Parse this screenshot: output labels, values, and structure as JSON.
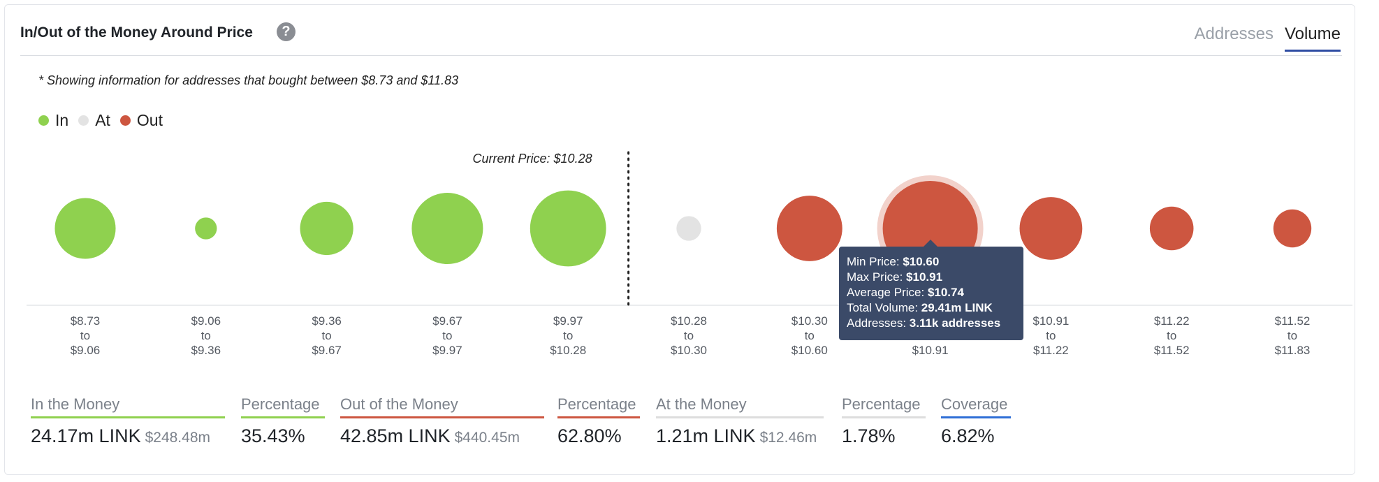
{
  "header": {
    "title": "In/Out of the Money Around Price",
    "help_icon": "question-icon",
    "help_glyph": "?",
    "tabs": [
      {
        "label": "Addresses",
        "active": false
      },
      {
        "label": "Volume",
        "active": true
      }
    ]
  },
  "note": "* Showing information for addresses that bought between $8.73 and $11.83",
  "legend": [
    {
      "label": "In",
      "color": "#8fd14f"
    },
    {
      "label": "At",
      "color": "#e3e3e3"
    },
    {
      "label": "Out",
      "color": "#cd5640"
    }
  ],
  "chart_data": {
    "type": "scatter",
    "current_price_label": "Current Price: $10.28",
    "current_price": 10.28,
    "bins": [
      {
        "from": "$8.73",
        "to": "$9.06",
        "status": "in",
        "size": 0.64
      },
      {
        "from": "$9.06",
        "to": "$9.36",
        "status": "in",
        "size": 0.23
      },
      {
        "from": "$9.36",
        "to": "$9.67",
        "status": "in",
        "size": 0.56
      },
      {
        "from": "$9.67",
        "to": "$9.97",
        "status": "in",
        "size": 0.75
      },
      {
        "from": "$9.97",
        "to": "$10.28",
        "status": "in",
        "size": 0.8
      },
      {
        "from": "$10.28",
        "to": "$10.30",
        "status": "at",
        "size": 0.26
      },
      {
        "from": "$10.30",
        "to": "$10.60",
        "status": "out",
        "size": 0.69
      },
      {
        "from": "$10.60",
        "to": "$10.91",
        "status": "out",
        "size": 1.0,
        "highlighted": true
      },
      {
        "from": "$10.91",
        "to": "$11.22",
        "status": "out",
        "size": 0.66
      },
      {
        "from": "$11.22",
        "to": "$11.52",
        "status": "out",
        "size": 0.46
      },
      {
        "from": "$11.52",
        "to": "$11.83",
        "status": "out",
        "size": 0.4
      }
    ],
    "connector": "to",
    "colors": {
      "in": "#8fd14f",
      "at": "#e3e3e3",
      "out": "#cd5640",
      "highlight_ring": "#f2d2cb"
    }
  },
  "tooltip": {
    "min_label": "Min Price:",
    "min_value": "$10.60",
    "max_label": "Max Price:",
    "max_value": "$10.91",
    "avg_label": "Average Price:",
    "avg_value": "$10.74",
    "vol_label": "Total Volume:",
    "vol_value": "29.41m LINK",
    "addr_label": "Addresses:",
    "addr_value": "3.11k addresses"
  },
  "summary": [
    {
      "label": "In the Money",
      "value": "24.17m LINK",
      "sub": "$248.48m",
      "color": "#8fd14f"
    },
    {
      "label": "Percentage",
      "value": "35.43%",
      "sub": "",
      "color": "#8fd14f"
    },
    {
      "label": "Out of the Money",
      "value": "42.85m LINK",
      "sub": "$440.45m",
      "color": "#cd5640"
    },
    {
      "label": "Percentage",
      "value": "62.80%",
      "sub": "",
      "color": "#cd5640"
    },
    {
      "label": "At the Money",
      "value": "1.21m LINK",
      "sub": "$12.46m",
      "color": "#dddddd"
    },
    {
      "label": "Percentage",
      "value": "1.78%",
      "sub": "",
      "color": "#dddddd"
    },
    {
      "label": "Coverage",
      "value": "6.82%",
      "sub": "",
      "color": "#2f6fd6"
    }
  ]
}
